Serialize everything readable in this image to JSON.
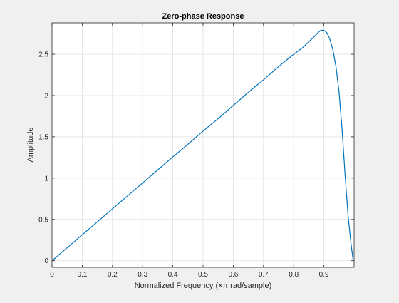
{
  "chart_data": {
    "type": "line",
    "title": "Zero-phase Response",
    "xlabel": "Normalized Frequency (×π rad/sample)",
    "ylabel": "Amplitude",
    "xlim": [
      0,
      1.0
    ],
    "ylim": [
      -0.08,
      2.88
    ],
    "xticks": [
      0,
      0.1,
      0.2,
      0.3,
      0.4,
      0.5,
      0.6,
      0.7,
      0.8,
      0.9
    ],
    "xtick_labels": [
      "0",
      "0.1",
      "0.2",
      "0.3",
      "0.4",
      "0.5",
      "0.6",
      "0.7",
      "0.8",
      "0.9"
    ],
    "yticks": [
      0,
      0.5,
      1,
      1.5,
      2,
      2.5
    ],
    "ytick_labels": [
      "0",
      "0.5",
      "1",
      "1.5",
      "2",
      "2.5"
    ],
    "grid": true,
    "series_color": "#0072bd",
    "series": [
      {
        "x": [
          0,
          0.05,
          0.1,
          0.15,
          0.2,
          0.25,
          0.3,
          0.35,
          0.4,
          0.45,
          0.5,
          0.55,
          0.6,
          0.65,
          0.7,
          0.75,
          0.78,
          0.8,
          0.83,
          0.85,
          0.87,
          0.88,
          0.89,
          0.9,
          0.91,
          0.92,
          0.93,
          0.94,
          0.95,
          0.96,
          0.97,
          0.98,
          0.99,
          0.997
        ],
        "y": [
          0,
          0.157,
          0.314,
          0.471,
          0.628,
          0.785,
          0.942,
          1.1,
          1.257,
          1.41,
          1.57,
          1.72,
          1.88,
          2.04,
          2.19,
          2.35,
          2.44,
          2.5,
          2.58,
          2.65,
          2.72,
          2.76,
          2.79,
          2.79,
          2.76,
          2.68,
          2.55,
          2.35,
          2.05,
          1.6,
          1.05,
          0.55,
          0.2,
          0
        ]
      }
    ]
  }
}
